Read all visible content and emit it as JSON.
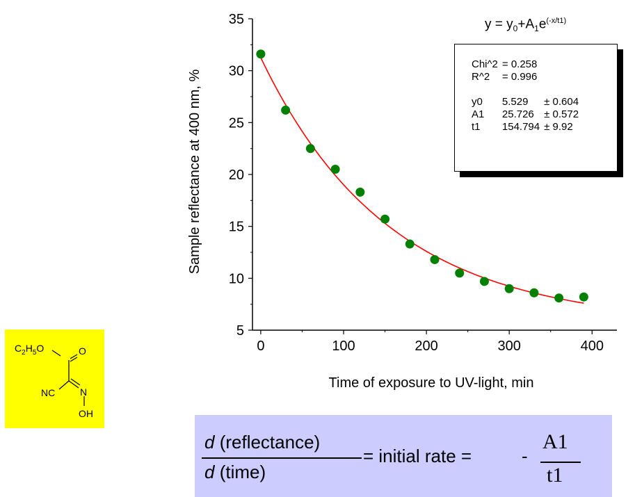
{
  "chart_data": {
    "type": "scatter",
    "xlabel": "Time of exposure to UV-light, min",
    "ylabel": "Sample reflectance at 400 nm, %",
    "xlim": [
      -10,
      430
    ],
    "ylim": [
      5,
      35
    ],
    "x_ticks": [
      0,
      100,
      200,
      300,
      400
    ],
    "y_ticks": [
      5,
      10,
      15,
      20,
      25,
      30,
      35
    ],
    "grid": false,
    "series": [
      {
        "type": "scatter",
        "color": "#008000",
        "x": [
          0,
          30,
          60,
          90,
          120,
          150,
          180,
          210,
          240,
          270,
          300,
          330,
          360,
          390
        ],
        "y": [
          31.6,
          26.2,
          22.5,
          20.5,
          18.3,
          15.7,
          13.3,
          11.8,
          10.5,
          9.7,
          9.0,
          8.6,
          8.1,
          8.2
        ]
      },
      {
        "type": "line",
        "color": "#ff0000",
        "model": "exp-decay",
        "params": {
          "y0": 5.529,
          "A1": 25.726,
          "t1": 154.794
        },
        "x_range": [
          0,
          390
        ]
      }
    ],
    "fit": {
      "equation": {
        "lhs": "y = y",
        "sub0": "0",
        "plus": "+A",
        "sub1": "1",
        "base": "e",
        "exponent": "(-x/t1)"
      },
      "stats": [
        {
          "name": "Chi^2",
          "value": "=  0.258",
          "error": ""
        },
        {
          "name": "R^2",
          "value": "=  0.996",
          "error": ""
        },
        {
          "name": "y0",
          "value": "5.529",
          "error": "± 0.604"
        },
        {
          "name": "A1",
          "value": "25.726",
          "error": "± 0.572"
        },
        {
          "name": "t1",
          "value": "154.794",
          "error": "± 9.92"
        }
      ]
    }
  },
  "molecule": {
    "labels": {
      "ethyl": "C",
      "ethyl_sub1": "2",
      "h": "H",
      "ethyl_sub2": "5",
      "ester_o": "O",
      "carbonyl_o": "O",
      "nitrile": "NC",
      "imine_n": "N",
      "hydroxyl": "OH"
    }
  },
  "formula": {
    "d1": "d",
    "num_text": " (reflectance)",
    "d2": "d",
    "den_text": " (time)",
    "middle": "= initial rate =",
    "minus": "-",
    "ratio_num": "A1",
    "ratio_den": "t1"
  }
}
